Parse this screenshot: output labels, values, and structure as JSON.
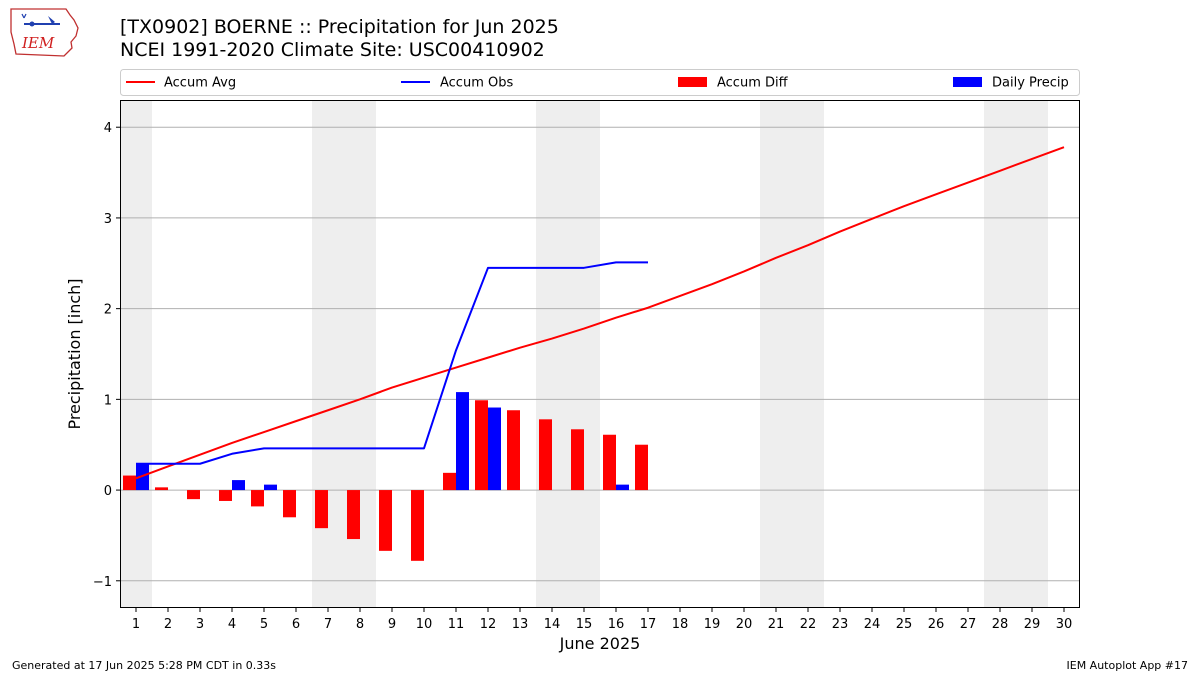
{
  "title_line1": "[TX0902] BOERNE :: Precipitation for Jun 2025",
  "title_line2": "NCEI 1991-2020 Climate Site: USC00410902",
  "logo_text": "IEM",
  "footer_left": "Generated at 17 Jun 2025 5:28 PM CDT in 0.33s",
  "footer_right": "IEM Autoplot App #17",
  "chart_data": {
    "type": "bar",
    "xlabel": "June 2025",
    "ylabel": "Precipitation [inch]",
    "xlim": [
      0.5,
      30.5
    ],
    "ylim": [
      -1.3,
      4.3
    ],
    "yticks": [
      -1,
      0,
      1,
      2,
      3,
      4
    ],
    "ytick_labels": [
      "−1",
      "0",
      "1",
      "2",
      "3",
      "4"
    ],
    "xticks": [
      1,
      2,
      3,
      4,
      5,
      6,
      7,
      8,
      9,
      10,
      11,
      12,
      13,
      14,
      15,
      16,
      17,
      18,
      19,
      20,
      21,
      22,
      23,
      24,
      25,
      26,
      27,
      28,
      29,
      30
    ],
    "xtick_labels": [
      "1",
      "2",
      "3",
      "4",
      "5",
      "6",
      "7",
      "8",
      "9",
      "10",
      "11",
      "12",
      "13",
      "14",
      "15",
      "16",
      "17",
      "18",
      "19",
      "20",
      "21",
      "22",
      "23",
      "24",
      "25",
      "26",
      "27",
      "28",
      "29",
      "30"
    ],
    "grid": "horizontal",
    "weekend_shading": [
      [
        0.5,
        1.5
      ],
      [
        6.5,
        8.5
      ],
      [
        13.5,
        15.5
      ],
      [
        20.5,
        22.5
      ],
      [
        27.5,
        29.5
      ]
    ],
    "legend_position": "top",
    "colors": {
      "accum_avg": "#ff0000",
      "accum_obs": "#0000ff",
      "accum_diff": "#ff0000",
      "daily_precip": "#0000ff",
      "weekend": "#eeeeee",
      "grid": "#b0b0b0"
    },
    "series": [
      {
        "name": "Accum Avg",
        "type": "line",
        "x": [
          1,
          2,
          3,
          4,
          5,
          6,
          7,
          8,
          9,
          10,
          11,
          12,
          13,
          14,
          15,
          16,
          17,
          18,
          19,
          20,
          21,
          22,
          23,
          24,
          25,
          26,
          27,
          28,
          29,
          30
        ],
        "values": [
          0.13,
          0.26,
          0.39,
          0.52,
          0.64,
          0.76,
          0.88,
          1.0,
          1.13,
          1.24,
          1.35,
          1.46,
          1.57,
          1.67,
          1.78,
          1.9,
          2.01,
          2.14,
          2.27,
          2.41,
          2.56,
          2.7,
          2.85,
          2.99,
          3.13,
          3.26,
          3.39,
          3.52,
          3.65,
          3.78
        ]
      },
      {
        "name": "Accum Obs",
        "type": "line",
        "x": [
          1,
          2,
          3,
          4,
          5,
          6,
          7,
          8,
          9,
          10,
          11,
          12,
          13,
          14,
          15,
          16,
          17
        ],
        "values": [
          0.29,
          0.29,
          0.29,
          0.4,
          0.46,
          0.46,
          0.46,
          0.46,
          0.46,
          0.46,
          1.54,
          2.45,
          2.45,
          2.45,
          2.45,
          2.51,
          2.51
        ]
      },
      {
        "name": "Accum Diff",
        "type": "bar",
        "x": [
          1,
          2,
          3,
          4,
          5,
          6,
          7,
          8,
          9,
          10,
          11,
          12,
          13,
          14,
          15,
          16,
          17
        ],
        "values": [
          0.16,
          0.03,
          -0.1,
          -0.12,
          -0.18,
          -0.3,
          -0.42,
          -0.54,
          -0.67,
          -0.78,
          0.19,
          0.99,
          0.88,
          0.78,
          0.67,
          0.61,
          0.5
        ]
      },
      {
        "name": "Daily Precip",
        "type": "bar",
        "x": [
          1,
          2,
          3,
          4,
          5,
          6,
          7,
          8,
          9,
          10,
          11,
          12,
          13,
          14,
          15,
          16,
          17
        ],
        "values": [
          0.29,
          0,
          0,
          0.11,
          0.06,
          0,
          0,
          0,
          0,
          0,
          1.08,
          0.91,
          0,
          0,
          0,
          0.06,
          0
        ]
      }
    ]
  }
}
